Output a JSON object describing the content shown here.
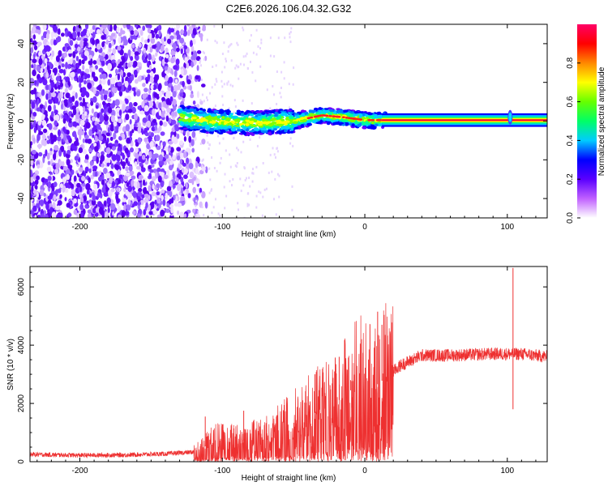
{
  "title": "C2E6.2026.106.04.32.G32",
  "chart_data": [
    {
      "type": "heatmap",
      "xlabel": "Height of straight line (km)",
      "ylabel": "Frequency (Hz)",
      "xlim": [
        -235,
        128
      ],
      "ylim": [
        -50,
        50
      ],
      "xticks": [
        -200,
        -100,
        0,
        100
      ],
      "yticks": [
        -40,
        -20,
        0,
        20,
        40
      ],
      "noise_region_x": [
        -235,
        -120
      ],
      "signal_region_x": [
        -130,
        128
      ],
      "signal_ridge_freq": [
        {
          "x": -130,
          "f": 2
        },
        {
          "x": -110,
          "f": 0
        },
        {
          "x": -80,
          "f": -1
        },
        {
          "x": -50,
          "f": 0
        },
        {
          "x": -30,
          "f": 3
        },
        {
          "x": -15,
          "f": 2
        },
        {
          "x": 0,
          "f": 0.5
        },
        {
          "x": 15,
          "f": 0.5
        },
        {
          "x": 128,
          "f": 0.5
        }
      ],
      "feature_at_x": 102
    },
    {
      "type": "colorbar",
      "label": "Normalized spectral amplitude",
      "range": [
        0.0,
        1.0
      ],
      "ticks": [
        "0.0",
        "0.2",
        "0.4",
        "0.6",
        "0.8"
      ],
      "colors": [
        "#ffffff",
        "#c060ff",
        "#5a00ff",
        "#0000ff",
        "#00ccff",
        "#00ff66",
        "#66ff00",
        "#ffff00",
        "#ff8800",
        "#ff0000",
        "#ff0066"
      ]
    },
    {
      "type": "line",
      "xlabel": "Height of straight line (km)",
      "ylabel": "SNR (10 * v/v)",
      "xlim": [
        -235,
        128
      ],
      "ylim": [
        0,
        6700
      ],
      "xticks": [
        -200,
        -100,
        0,
        100
      ],
      "yticks": [
        0,
        2000,
        4000,
        6000
      ],
      "color": "#ee3030",
      "series_envelope": [
        {
          "x": -235,
          "y": 250
        },
        {
          "x": -200,
          "y": 220
        },
        {
          "x": -170,
          "y": 230
        },
        {
          "x": -140,
          "y": 270
        },
        {
          "x": -120,
          "y": 330
        },
        {
          "x": -105,
          "y": 700
        },
        {
          "x": -90,
          "y": 700
        },
        {
          "x": -70,
          "y": 800
        },
        {
          "x": -50,
          "y": 1300
        },
        {
          "x": -30,
          "y": 1800
        },
        {
          "x": -15,
          "y": 2200
        },
        {
          "x": -5,
          "y": 2700
        },
        {
          "x": 5,
          "y": 2500
        },
        {
          "x": 15,
          "y": 2900
        },
        {
          "x": 25,
          "y": 3300
        },
        {
          "x": 40,
          "y": 3650
        },
        {
          "x": 60,
          "y": 3650
        },
        {
          "x": 90,
          "y": 3700
        },
        {
          "x": 100,
          "y": 3700
        },
        {
          "x": 104,
          "y": 3700
        },
        {
          "x": 110,
          "y": 3700
        },
        {
          "x": 128,
          "y": 3600
        }
      ],
      "spikes": [
        {
          "x": -112,
          "y": 1550
        },
        {
          "x": -85,
          "y": 1750
        },
        {
          "x": -35,
          "y": 3000
        },
        {
          "x": -18,
          "y": 3600
        },
        {
          "x": -10,
          "y": 2800
        },
        {
          "x": 9,
          "y": 5150
        },
        {
          "x": 12,
          "y": 4700
        },
        {
          "x": 104,
          "y": 6650
        },
        {
          "x": 104,
          "y": 1800
        }
      ]
    }
  ]
}
